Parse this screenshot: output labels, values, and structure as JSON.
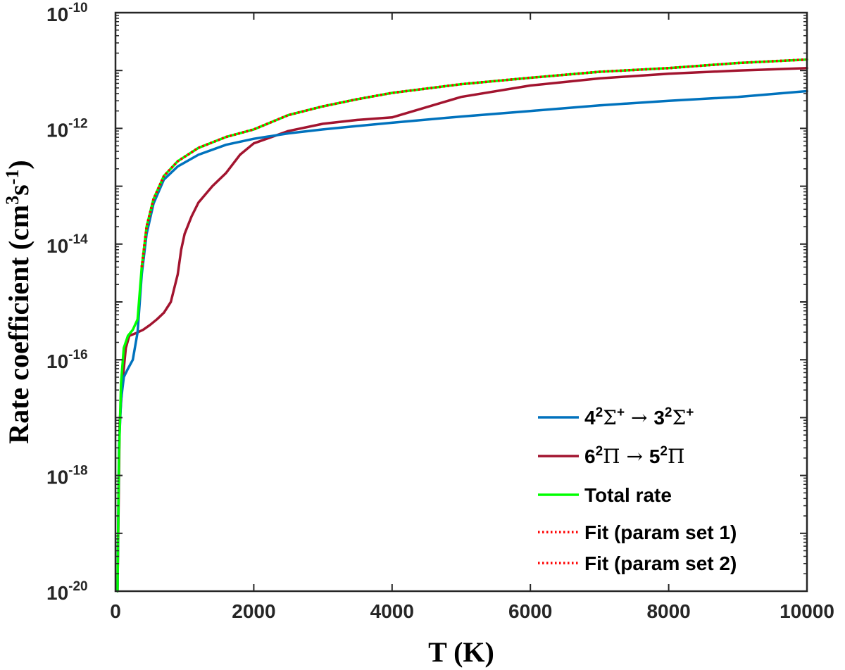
{
  "chart_data": {
    "type": "line",
    "xlabel": "T (K)",
    "ylabel_parts": [
      "Rate coefficient (cm",
      "3",
      "s",
      "-1",
      ")"
    ],
    "xlim": [
      0,
      10000
    ],
    "ylim": [
      1e-20,
      1e-10
    ],
    "yscale": "log",
    "x_ticks": [
      0,
      2000,
      4000,
      6000,
      8000,
      10000
    ],
    "x_tick_labels": [
      "0",
      "2000",
      "4000",
      "6000",
      "8000",
      "10000"
    ],
    "y_tick_exponents": [
      "-10",
      "-12",
      "-14",
      "-16",
      "-18",
      "-20"
    ],
    "y_tick_base": "10",
    "grid": false,
    "legend_position": "bottom-right",
    "series": [
      {
        "name": "4²Σ⁺ → 3²Σ⁺",
        "color": "#0072BD",
        "style": "solid",
        "x": [
          30,
          50,
          80,
          120,
          180,
          250,
          320,
          380,
          450,
          550,
          700,
          900,
          1200,
          1600,
          2000,
          2500,
          3000,
          3500,
          4000,
          5000,
          6000,
          7000,
          8000,
          9000,
          10000
        ],
        "y": [
          1e-20,
          3e-18,
          2e-17,
          5e-17,
          7e-17,
          1e-16,
          3e-16,
          3e-15,
          1.5e-14,
          5e-14,
          1.3e-13,
          2.2e-13,
          3.5e-13,
          5.2e-13,
          6.6e-13,
          8.2e-13,
          9.6e-13,
          1.1e-12,
          1.25e-12,
          1.6e-12,
          2e-12,
          2.5e-12,
          3e-12,
          3.5e-12,
          4.4e-12
        ]
      },
      {
        "name": "6²Π → 5²Π",
        "color": "#A2142F",
        "style": "solid",
        "x": [
          30,
          60,
          100,
          150,
          200,
          300,
          400,
          500,
          600,
          700,
          800,
          900,
          950,
          1000,
          1100,
          1200,
          1400,
          1600,
          1800,
          2000,
          2500,
          3000,
          3500,
          4000,
          5000,
          6000,
          7000,
          8000,
          9000,
          10000
        ],
        "y": [
          1e-20,
          8e-18,
          4e-17,
          1.6e-16,
          2.6e-16,
          2.9e-16,
          3.3e-16,
          4e-16,
          5e-16,
          6.5e-16,
          1e-15,
          3e-15,
          8e-15,
          1.5e-14,
          3e-14,
          5.2e-14,
          1e-13,
          1.7e-13,
          3.5e-13,
          5.5e-13,
          9e-13,
          1.2e-12,
          1.4e-12,
          1.55e-12,
          3.5e-12,
          5.5e-12,
          7.3e-12,
          8.8e-12,
          1e-11,
          1.1e-11
        ]
      },
      {
        "name": "Total rate",
        "color": "#00FF00",
        "style": "solid",
        "x": [
          30,
          50,
          80,
          120,
          180,
          250,
          320,
          380,
          450,
          550,
          700,
          900,
          1200,
          1600,
          2000,
          2500,
          3000,
          3500,
          4000,
          5000,
          6000,
          7000,
          8000,
          9000,
          10000
        ],
        "y": [
          1e-20,
          2e-18,
          4e-17,
          1.6e-16,
          2.6e-16,
          3.3e-16,
          5e-16,
          4e-15,
          2e-14,
          6e-14,
          1.5e-13,
          2.7e-13,
          4.6e-13,
          7.1e-13,
          9.6e-13,
          1.7e-12,
          2.4e-12,
          3.2e-12,
          4.1e-12,
          5.8e-12,
          7.5e-12,
          9.5e-12,
          1.1e-11,
          1.35e-11,
          1.55e-11
        ]
      },
      {
        "name": "Fit (param set 1)",
        "color": "#FF0000",
        "style": "dotted",
        "x": [
          380,
          450,
          550,
          700,
          900,
          1200,
          1600,
          2000,
          2500,
          3000,
          3500,
          4000,
          5000,
          6000,
          7000,
          8000,
          9000,
          10000
        ],
        "y": [
          4e-15,
          2e-14,
          6e-14,
          1.5e-13,
          2.7e-13,
          4.6e-13,
          7.1e-13,
          9.6e-13,
          1.7e-12,
          2.4e-12,
          3.2e-12,
          4.1e-12,
          5.8e-12,
          7.5e-12,
          9.5e-12,
          1.1e-11,
          1.35e-11,
          1.55e-11
        ]
      },
      {
        "name": "Fit (param set 2)",
        "color": "#FF0000",
        "style": "dotted",
        "x": [
          380,
          450,
          550,
          700,
          900,
          1200,
          1600,
          2000,
          2500,
          3000,
          3500,
          4000,
          5000,
          6000,
          7000,
          8000,
          9000,
          10000
        ],
        "y": [
          4e-15,
          2e-14,
          6e-14,
          1.5e-13,
          2.7e-13,
          4.6e-13,
          7.1e-13,
          9.6e-13,
          1.7e-12,
          2.4e-12,
          3.2e-12,
          4.1e-12,
          5.8e-12,
          7.5e-12,
          9.5e-12,
          1.1e-11,
          1.35e-11,
          1.55e-11
        ]
      }
    ],
    "legend_labels": [
      {
        "pre": "4",
        "sup1": "2",
        "sym1": "Σ",
        "sup2": "+",
        "arrow": " → ",
        "pre2": "3",
        "sup3": "2",
        "sym2": "Σ",
        "sup4": "+"
      },
      {
        "pre": "6",
        "sup1": "2",
        "sym1": "Π",
        "sup2": "",
        "arrow": " → ",
        "pre2": "5",
        "sup3": "2",
        "sym2": "Π",
        "sup4": ""
      },
      {
        "text": "Total rate"
      },
      {
        "text": "Fit (param set 1)"
      },
      {
        "text": "Fit (param set 2)"
      }
    ]
  }
}
